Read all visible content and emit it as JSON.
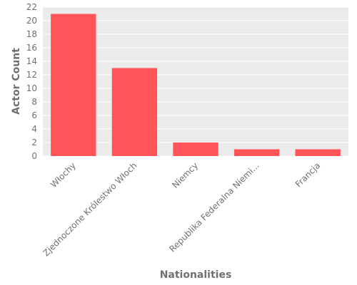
{
  "chart_data": {
    "type": "bar",
    "categories": [
      "Włochy",
      "Zjednoczone Królestwo Włoch",
      "Niemcy",
      "Republika Federalna Niemi...",
      "Francja"
    ],
    "values": [
      21,
      13,
      2,
      1,
      1
    ],
    "xlabel": "Nationalities",
    "ylabel": "Actor Count",
    "ylim": [
      0,
      22
    ],
    "yticks": [
      0,
      2,
      4,
      6,
      8,
      10,
      12,
      14,
      16,
      18,
      20,
      22
    ],
    "grid": true,
    "colors": {
      "bar": "#ff5558",
      "plot_background": "#ebebeb",
      "grid": "#ffffff",
      "text": "#707070"
    }
  }
}
